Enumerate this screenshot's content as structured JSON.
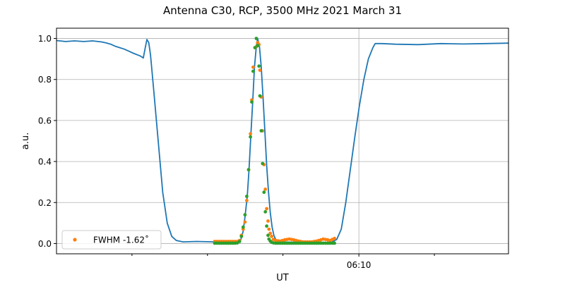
{
  "chart_data": {
    "type": "line",
    "title": "Antenna C30, RCP, 3500 MHz 2021 March 31",
    "xlabel": "UT",
    "ylabel": "a.u.",
    "xlim": [
      0,
      100
    ],
    "ylim": [
      -0.05,
      1.05
    ],
    "grid": true,
    "y_ticks": [
      "0.0",
      "0.2",
      "0.4",
      "0.6",
      "0.8",
      "1.0"
    ],
    "x_tick_labels": [
      {
        "x": 66.9,
        "label": "06:10"
      }
    ],
    "x_minor_ticks": [
      16.7,
      33.4,
      50.1,
      83.6
    ],
    "legend": {
      "placement": "lower-left",
      "entries": [
        "FWHM -1.62$^\\circ$"
      ],
      "display": "FWHM -1.62˚"
    },
    "colors": {
      "line": "#1f77b4",
      "orange": "#ff7f0e",
      "green": "#2ca02c",
      "grid": "#b0b0b0"
    },
    "series": [
      {
        "kind": "line",
        "points": [
          [
            0,
            0.99
          ],
          [
            2,
            0.985
          ],
          [
            4,
            0.988
          ],
          [
            6,
            0.985
          ],
          [
            8,
            0.988
          ],
          [
            10,
            0.983
          ],
          [
            11,
            0.978
          ],
          [
            12,
            0.972
          ],
          [
            13,
            0.962
          ],
          [
            14,
            0.955
          ],
          [
            15,
            0.948
          ],
          [
            16,
            0.938
          ],
          [
            17,
            0.928
          ],
          [
            18.5,
            0.915
          ],
          [
            19.2,
            0.905
          ],
          [
            19.6,
            0.95
          ],
          [
            20.0,
            0.995
          ],
          [
            20.4,
            0.98
          ],
          [
            20.8,
            0.92
          ],
          [
            21.5,
            0.75
          ],
          [
            22.5,
            0.5
          ],
          [
            23.5,
            0.25
          ],
          [
            24.5,
            0.1
          ],
          [
            25.5,
            0.035
          ],
          [
            26.5,
            0.015
          ],
          [
            28,
            0.008
          ],
          [
            31,
            0.01
          ],
          [
            35,
            0.008
          ],
          [
            38,
            0.008
          ],
          [
            40,
            0.008
          ],
          [
            40.8,
            0.02
          ],
          [
            41.3,
            0.06
          ],
          [
            41.7,
            0.13
          ],
          [
            42.2,
            0.23
          ],
          [
            42.6,
            0.36
          ],
          [
            43.0,
            0.53
          ],
          [
            43.4,
            0.69
          ],
          [
            43.8,
            0.86
          ],
          [
            44.2,
            0.96
          ],
          [
            44.5,
            1.0
          ],
          [
            44.9,
            0.96
          ],
          [
            45.3,
            0.86
          ],
          [
            45.7,
            0.71
          ],
          [
            46.1,
            0.55
          ],
          [
            46.5,
            0.38
          ],
          [
            46.9,
            0.25
          ],
          [
            47.3,
            0.15
          ],
          [
            47.7,
            0.08
          ],
          [
            48.1,
            0.04
          ],
          [
            48.6,
            0.015
          ],
          [
            49.5,
            0.008
          ],
          [
            55,
            0.005
          ],
          [
            60,
            0.005
          ],
          [
            61,
            0.008
          ],
          [
            62,
            0.02
          ],
          [
            63,
            0.07
          ],
          [
            64,
            0.2
          ],
          [
            65,
            0.36
          ],
          [
            66,
            0.52
          ],
          [
            67,
            0.67
          ],
          [
            68,
            0.8
          ],
          [
            69,
            0.9
          ],
          [
            70,
            0.955
          ],
          [
            70.5,
            0.975
          ],
          [
            72,
            0.975
          ],
          [
            75,
            0.972
          ],
          [
            80,
            0.97
          ],
          [
            85,
            0.975
          ],
          [
            90,
            0.973
          ],
          [
            95,
            0.975
          ],
          [
            100,
            0.977
          ]
        ]
      },
      {
        "kind": "scatter",
        "name": "FWHM -1.62˚",
        "color": "#ff7f0e",
        "points": [
          [
            35.0,
            0.01
          ],
          [
            35.5,
            0.01
          ],
          [
            36.0,
            0.01
          ],
          [
            36.5,
            0.01
          ],
          [
            37.0,
            0.01
          ],
          [
            37.5,
            0.01
          ],
          [
            38.0,
            0.01
          ],
          [
            38.5,
            0.01
          ],
          [
            39.0,
            0.01
          ],
          [
            39.5,
            0.01
          ],
          [
            40.0,
            0.01
          ],
          [
            40.5,
            0.015
          ],
          [
            40.9,
            0.04
          ],
          [
            41.3,
            0.07
          ],
          [
            41.7,
            0.105
          ],
          [
            42.1,
            0.21
          ],
          [
            42.5,
            0.36
          ],
          [
            42.9,
            0.535
          ],
          [
            43.2,
            0.7
          ],
          [
            43.5,
            0.86
          ],
          [
            43.9,
            0.955
          ],
          [
            44.2,
            0.96
          ],
          [
            44.5,
            0.98
          ],
          [
            44.8,
            0.97
          ],
          [
            45.0,
            0.845
          ],
          [
            45.3,
            0.715
          ],
          [
            45.6,
            0.55
          ],
          [
            45.9,
            0.385
          ],
          [
            46.2,
            0.265
          ],
          [
            46.5,
            0.17
          ],
          [
            46.8,
            0.11
          ],
          [
            47.0,
            0.07
          ],
          [
            47.3,
            0.05
          ],
          [
            47.6,
            0.035
          ],
          [
            48.0,
            0.02
          ],
          [
            48.5,
            0.015
          ],
          [
            49.0,
            0.013
          ],
          [
            49.5,
            0.012
          ],
          [
            50.0,
            0.015
          ],
          [
            50.5,
            0.018
          ],
          [
            51.0,
            0.02
          ],
          [
            51.5,
            0.022
          ],
          [
            52.0,
            0.02
          ],
          [
            52.5,
            0.018
          ],
          [
            53.0,
            0.015
          ],
          [
            53.5,
            0.012
          ],
          [
            54.0,
            0.01
          ],
          [
            54.5,
            0.008
          ],
          [
            55.0,
            0.008
          ],
          [
            55.5,
            0.008
          ],
          [
            56.0,
            0.008
          ],
          [
            56.5,
            0.008
          ],
          [
            57.0,
            0.01
          ],
          [
            57.5,
            0.012
          ],
          [
            58.0,
            0.015
          ],
          [
            58.5,
            0.018
          ],
          [
            59.0,
            0.022
          ],
          [
            59.5,
            0.02
          ],
          [
            60.0,
            0.018
          ],
          [
            60.5,
            0.015
          ],
          [
            61.0,
            0.02
          ],
          [
            61.5,
            0.025
          ]
        ]
      },
      {
        "kind": "scatter",
        "color": "#2ca02c",
        "points": [
          [
            35.0,
            0.002
          ],
          [
            35.5,
            0.002
          ],
          [
            36.0,
            0.002
          ],
          [
            36.5,
            0.002
          ],
          [
            37.0,
            0.002
          ],
          [
            37.5,
            0.002
          ],
          [
            38.0,
            0.002
          ],
          [
            38.5,
            0.002
          ],
          [
            39.0,
            0.002
          ],
          [
            39.5,
            0.002
          ],
          [
            40.0,
            0.003
          ],
          [
            40.5,
            0.01
          ],
          [
            40.9,
            0.035
          ],
          [
            41.3,
            0.08
          ],
          [
            41.7,
            0.14
          ],
          [
            42.1,
            0.23
          ],
          [
            42.5,
            0.36
          ],
          [
            42.9,
            0.52
          ],
          [
            43.2,
            0.69
          ],
          [
            43.5,
            0.84
          ],
          [
            43.9,
            0.955
          ],
          [
            44.2,
            1.0
          ],
          [
            44.5,
            0.965
          ],
          [
            44.8,
            0.865
          ],
          [
            45.0,
            0.72
          ],
          [
            45.3,
            0.55
          ],
          [
            45.6,
            0.39
          ],
          [
            45.9,
            0.25
          ],
          [
            46.2,
            0.155
          ],
          [
            46.5,
            0.085
          ],
          [
            46.8,
            0.04
          ],
          [
            47.0,
            0.022
          ],
          [
            47.3,
            0.012
          ],
          [
            47.6,
            0.006
          ],
          [
            48.0,
            0.003
          ],
          [
            48.5,
            0.002
          ],
          [
            49.0,
            0.002
          ],
          [
            49.5,
            0.002
          ],
          [
            50.0,
            0.002
          ],
          [
            50.5,
            0.002
          ],
          [
            51.0,
            0.002
          ],
          [
            51.5,
            0.002
          ],
          [
            52.0,
            0.002
          ],
          [
            52.5,
            0.002
          ],
          [
            53.0,
            0.002
          ],
          [
            53.5,
            0.002
          ],
          [
            54.0,
            0.002
          ],
          [
            54.5,
            0.002
          ],
          [
            55.0,
            0.002
          ],
          [
            55.5,
            0.002
          ],
          [
            56.0,
            0.002
          ],
          [
            56.5,
            0.002
          ],
          [
            57.0,
            0.002
          ],
          [
            57.5,
            0.002
          ],
          [
            58.0,
            0.002
          ],
          [
            58.5,
            0.002
          ],
          [
            59.0,
            0.002
          ],
          [
            59.5,
            0.002
          ],
          [
            60.0,
            0.002
          ],
          [
            60.5,
            0.002
          ],
          [
            61.0,
            0.002
          ],
          [
            61.5,
            0.002
          ]
        ]
      }
    ]
  }
}
